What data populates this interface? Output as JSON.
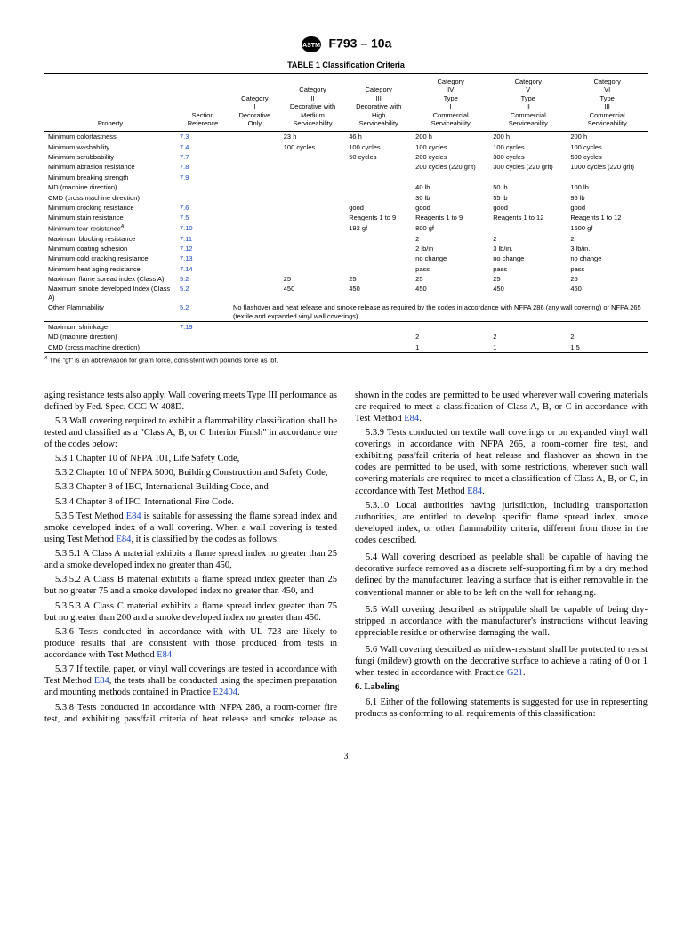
{
  "header": {
    "designation": "F793 – 10a"
  },
  "table": {
    "title": "TABLE 1 Classification Criteria",
    "columns": [
      "Property",
      "Section Reference",
      "Category I Decorative Only",
      "Category II Decorative with Medium Serviceability",
      "Category III Decorative with High Serviceability",
      "Category IV Type I Commercial Serviceability",
      "Category V Type II Commercial Serviceability",
      "Category VI Type III Commercial Serviceability"
    ],
    "rows": [
      {
        "p": "Minimum colorfastness",
        "r": "7.3",
        "v": [
          "",
          "23 h",
          "46 h",
          "200 h",
          "200 h",
          "200 h"
        ]
      },
      {
        "p": "Minimum washability",
        "r": "7.4",
        "v": [
          "",
          "100 cycles",
          "100 cycles",
          "100 cycles",
          "100 cycles",
          "100 cycles"
        ]
      },
      {
        "p": "Minimum scrubbability",
        "r": "7.7",
        "v": [
          "",
          "",
          "50 cycles",
          "200 cycles",
          "300 cycles",
          "500 cycles"
        ]
      },
      {
        "p": "Minimum abrasion resistance",
        "r": "7.8",
        "v": [
          "",
          "",
          "",
          "200 cycles (220 grit)",
          "300 cycles (220 grit)",
          "1000 cycles (220 grit)"
        ]
      },
      {
        "p": "Minimum breaking strength",
        "r": "7.9",
        "v": [
          "",
          "",
          "",
          "",
          "",
          ""
        ]
      },
      {
        "p": "MD (machine direction)",
        "r": "",
        "v": [
          "",
          "",
          "",
          "40 lb",
          "50 lb",
          "100 lb"
        ],
        "indent": true
      },
      {
        "p": "CMD (cross machine direction)",
        "r": "",
        "v": [
          "",
          "",
          "",
          "30 lb",
          "55 lb",
          "95 lb"
        ],
        "indent": true
      },
      {
        "p": "Minimum crocking resistance",
        "r": "7.6",
        "v": [
          "",
          "",
          "good",
          "good",
          "good",
          "good"
        ]
      },
      {
        "p": "Minimum stain resistance",
        "r": "7.5",
        "v": [
          "",
          "",
          "Reagents 1 to 9",
          "Reagents 1 to 9",
          "Reagents 1 to 12",
          "Reagents 1 to 12"
        ]
      },
      {
        "p": "Minimum tear resistance",
        "sup": "A",
        "r": "7.10",
        "v": [
          "",
          "",
          "192 gf",
          "800 gf",
          "",
          "1600 gf"
        ]
      },
      {
        "p": "Maximum blocking resistance",
        "r": "7.11",
        "v": [
          "",
          "",
          "",
          "2",
          "2",
          "2"
        ]
      },
      {
        "p": "Minimum coating adhesion",
        "r": "7.12",
        "v": [
          "",
          "",
          "",
          "2 lb/in",
          "3 lb/in.",
          "3 lb/in."
        ]
      },
      {
        "p": "Minimum cold cracking resistance",
        "r": "7.13",
        "v": [
          "",
          "",
          "",
          "no change",
          "no change",
          "no change"
        ]
      },
      {
        "p": "Minimum heat aging resistance",
        "r": "7.14",
        "v": [
          "",
          "",
          "",
          "pass",
          "pass",
          "pass"
        ]
      },
      {
        "p": "Maximum flame spread index (Class A)",
        "r": "5.2",
        "v": [
          "",
          "25",
          "25",
          "25",
          "25",
          "25"
        ]
      },
      {
        "p": "Maximum smoke developed Index (Class A)",
        "r": "5.2",
        "v": [
          "",
          "450",
          "450",
          "450",
          "450",
          "450"
        ]
      },
      {
        "p": "Other Flammability",
        "r": "5.2",
        "span": "No flashover and heat release and smoke release as required by the codes in accordance with NFPA 286 (any wall covering) or NFPA 265 (textile and expanded vinyl wall coverings)",
        "indent": true
      },
      {
        "p": "Maximum shrinkage",
        "r": "7.19",
        "v": [
          "",
          "",
          "",
          "",
          "",
          ""
        ],
        "top": true
      },
      {
        "p": "MD (machine direction)",
        "r": "",
        "v": [
          "",
          "",
          "",
          "2",
          "2",
          "2"
        ],
        "indent": true
      },
      {
        "p": "CMD (cross machine direction)",
        "r": "",
        "v": [
          "",
          "",
          "",
          "1",
          "1",
          "1.5"
        ],
        "indent": true,
        "bot": true
      }
    ],
    "footnote_label": "A",
    "footnote": "The \"gf\" is an abbreviation for gram force, consistent with pounds force as lbf."
  },
  "body": {
    "lead": "aging resistance tests also apply. Wall covering meets Type III performance as defined by Fed. Spec. CCC-W-408D.",
    "p53": "Wall covering required to exhibit a flammability classification shall be tested and classified as a \"Class A, B, or C Interior Finish\" in accordance one of the codes below:",
    "p531": "Chapter 10 of NFPA 101, Life Safety Code,",
    "p532": "Chapter 10 of NFPA 5000, Building Construction and Safety Code,",
    "p533": "Chapter 8 of IBC, International Building Code, and",
    "p534": "Chapter 8 of IFC, International Fire Code.",
    "p535a": "Test Method ",
    "e84": "E84",
    "p535b": " is suitable for assessing the flame spread index and smoke developed index of a wall covering. When a wall covering is tested using Test Method ",
    "p535c": ", it is classified by the codes as follows:",
    "p5351": "A Class A material exhibits a flame spread index no greater than 25 and a smoke developed index no greater than 450,",
    "p5352": "A Class B material exhibits a flame spread index greater than 25 but no greater 75 and a smoke developed index no greater than 450, and",
    "p5353": "A Class C material exhibits a flame spread index greater than 75 but no greater than 200 and a smoke developed index no greater than 450.",
    "p536a": "Tests conducted in accordance with with UL 723 are likely to produce results that are consistent with those produced from tests in accordance with Test Method ",
    "p536b": ".",
    "p537a": "If textile, paper, or vinyl wall coverings are tested in accordance with Test Method ",
    "p537b": ", the tests shall be conducted using the specimen preparation and mounting methods contained in Practice ",
    "e2404": "E2404",
    "p537c": ".",
    "p538": "Tests conducted in accordance with NFPA 286, a room-corner fire test, and exhibiting pass/fail criteria of heat release and smoke release as shown in the codes are permitted",
    "p538b": "to be used wherever wall covering materials are required to meet a classification of Class A, B, or C in accordance with Test Method ",
    "p539a": "Tests conducted on textile wall coverings or on expanded vinyl wall coverings in accordance with NFPA 265, a room-corner fire test, and exhibiting pass/fail criteria of heat release and flashover as shown in the codes are permitted to be used, with some restrictions, wherever such wall covering materials are required to meet a classification of Class A, B, or C, in accordance with Test Method ",
    "p5310": "Local authorities having jurisdiction, including transportation authorities, are entitled to develop specific flame spread index, smoke developed index, or other flammability criteria, different from those in the codes described.",
    "p54": "Wall covering described as peelable shall be capable of having the decorative surface removed as a discrete self-supporting film by a dry method defined by the manufacturer, leaving a surface that is either removable in the conventional manner or able to be left on the wall for rehanging.",
    "p55": "Wall covering described as strippable shall be capable of being dry-stripped in accordance with the manufacturer's instructions without leaving appreciable residue or otherwise damaging the wall.",
    "p56a": "Wall covering described as mildew-resistant shall be protected to resist fungi (mildew) growth on the decorative surface to achieve a rating of 0 or 1 when tested in accordance with Practice ",
    "g21": "G21",
    "p56b": ".",
    "sec6": "6.  Labeling",
    "p61": "Either of the following statements is suggested for use in representing products as conforming to all requirements of this classification:"
  },
  "page": "3"
}
